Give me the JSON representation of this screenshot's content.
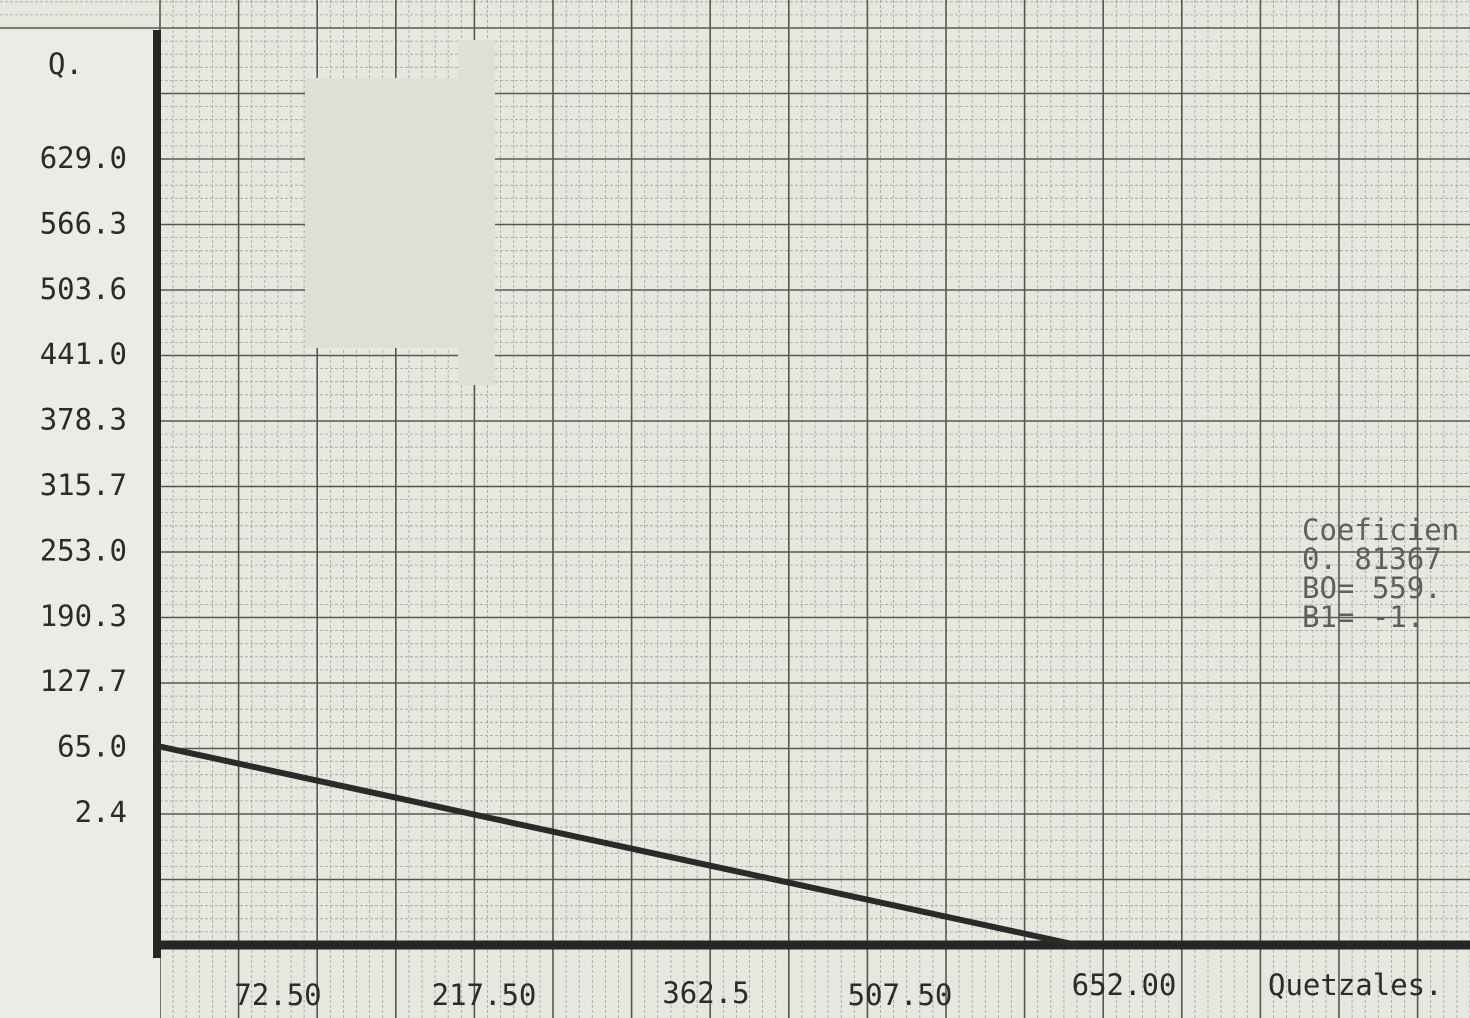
{
  "chart_data": {
    "type": "line",
    "ylabel": "Q.",
    "xlabel": "Quetzales.",
    "y_ticks": [
      "629.0",
      "566.3",
      "503.6",
      "441.0",
      "378.3",
      "315.7",
      "253.0",
      "190.3",
      "127.7",
      "65.0",
      "2.4"
    ],
    "x_ticks": [
      "72.50",
      "217.50",
      "362.5",
      "507.50",
      "652.00"
    ],
    "xlim": [
      0,
      790
    ],
    "ylim": [
      -60,
      700
    ],
    "grid": true,
    "annotation": {
      "lines": [
        "Coeficien",
        "0. 81367",
        "BO= 559.",
        "B1=  -1."
      ]
    },
    "series": [
      {
        "x": [
          0,
          553
        ],
        "y": [
          49.6,
          0
        ]
      }
    ]
  },
  "colors": {
    "paper": "#e7e6df",
    "grid_fine": "#a3a39c",
    "grid_major": "#58584f",
    "axis": "#262626",
    "line": "#2a2a2a",
    "text": "#2b2b2b",
    "faded_text": "#c9c9c0"
  }
}
